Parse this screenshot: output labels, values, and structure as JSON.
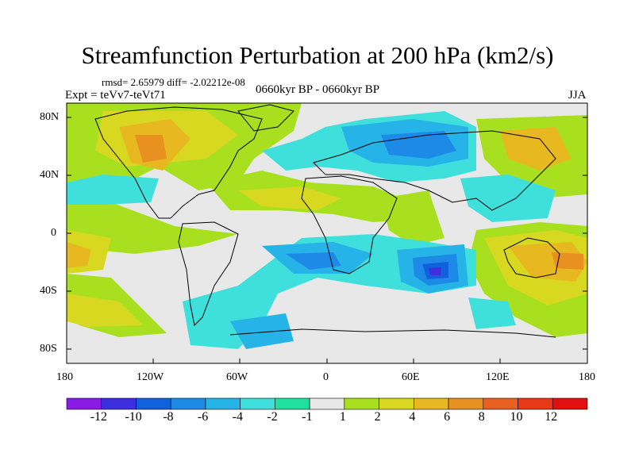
{
  "title": "Streamfunction Perturbation at 200 hPa (km2/s)",
  "stats": "rmsd= 2.65979 diff= -2.02212e-08",
  "experiment": "Expt = teVv7-teVt71",
  "period": "0660kyr BP - 0660kyr BP",
  "season": "JJA",
  "lat_labels": [
    "80N",
    "40N",
    "0",
    "40S",
    "80S"
  ],
  "lon_labels": [
    "180",
    "120W",
    "60W",
    "0",
    "60E",
    "120E",
    "180"
  ],
  "colorbar": {
    "labels": [
      "-12",
      "-10",
      "-8",
      "-6",
      "-4",
      "-2",
      "-1",
      "1",
      "2",
      "4",
      "6",
      "8",
      "10",
      "12"
    ],
    "colors": [
      "#8a1ae6",
      "#3d2ee0",
      "#0f62dc",
      "#1d8ae8",
      "#25b3e8",
      "#3fe0dc",
      "#20e0a0",
      "#e8e8e8",
      "#a8e020",
      "#d8d820",
      "#e8b820",
      "#e89020",
      "#e86020",
      "#e83818",
      "#e01010"
    ]
  },
  "map": {
    "background": "#e8e8e8"
  }
}
